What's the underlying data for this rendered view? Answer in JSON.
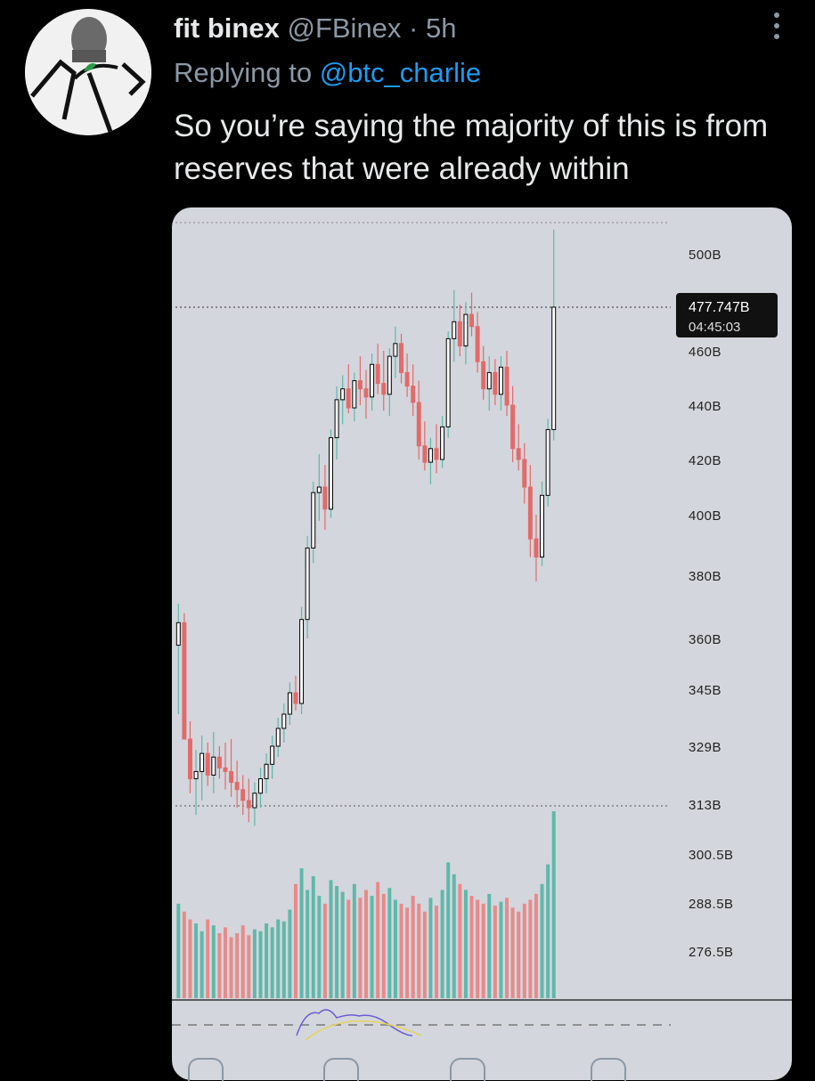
{
  "tweet": {
    "author_name": "fit binex",
    "handle": "@FBinex",
    "time_sep": " · ",
    "time": "5h",
    "replying_prefix": "Replying to ",
    "replying_to": "@btc_charlie",
    "text": "So you’re saying the majority of this is from reserves that were already within"
  },
  "icons": {
    "more": "more-vertical-icon",
    "avatar": "profile-avatar"
  },
  "chart_data": {
    "type": "candlestick",
    "y_tick_labels": [
      "500B",
      "460B",
      "440B",
      "420B",
      "400B",
      "380B",
      "360B",
      "345B",
      "329B",
      "313B",
      "300.5B",
      "288.5B",
      "276.5B"
    ],
    "price_tag": {
      "value": "477.747B",
      "countdown": "04:45:03"
    },
    "colors": {
      "up": "#000000",
      "down": "#e36a6a",
      "volume_up": "#5fb8aa",
      "volume_down": "#e88a8a",
      "background": "#d3d6dc"
    },
    "candles": [
      [
        358,
        371,
        338,
        365
      ],
      [
        365,
        368,
        333,
        331
      ],
      [
        331,
        336,
        316,
        320
      ],
      [
        320,
        328,
        310,
        322
      ],
      [
        322,
        332,
        314,
        327
      ],
      [
        327,
        330,
        318,
        321
      ],
      [
        321,
        333,
        316,
        326
      ],
      [
        326,
        329,
        320,
        323
      ],
      [
        323,
        330,
        317,
        322
      ],
      [
        322,
        331,
        315,
        319
      ],
      [
        319,
        325,
        312,
        317
      ],
      [
        317,
        321,
        310,
        314
      ],
      [
        314,
        320,
        308,
        312
      ],
      [
        312,
        319,
        307,
        316
      ],
      [
        316,
        323,
        312,
        320
      ],
      [
        320,
        327,
        316,
        324
      ],
      [
        324,
        332,
        320,
        329
      ],
      [
        329,
        337,
        326,
        334
      ],
      [
        334,
        341,
        330,
        338
      ],
      [
        338,
        347,
        335,
        344
      ],
      [
        344,
        349,
        339,
        341
      ],
      [
        341,
        370,
        338,
        366
      ],
      [
        366,
        393,
        360,
        389
      ],
      [
        389,
        412,
        384,
        408
      ],
      [
        408,
        422,
        398,
        410
      ],
      [
        410,
        418,
        395,
        402
      ],
      [
        402,
        431,
        399,
        428
      ],
      [
        428,
        447,
        420,
        442
      ],
      [
        442,
        451,
        433,
        446
      ],
      [
        446,
        455,
        437,
        439
      ],
      [
        439,
        452,
        434,
        449
      ],
      [
        449,
        458,
        440,
        446
      ],
      [
        446,
        453,
        435,
        443
      ],
      [
        443,
        459,
        438,
        455
      ],
      [
        455,
        463,
        444,
        448
      ],
      [
        448,
        460,
        438,
        444
      ],
      [
        444,
        461,
        436,
        458
      ],
      [
        458,
        470,
        450,
        463
      ],
      [
        463,
        467,
        448,
        452
      ],
      [
        452,
        459,
        443,
        447
      ],
      [
        447,
        455,
        436,
        441
      ],
      [
        441,
        449,
        420,
        425
      ],
      [
        425,
        434,
        416,
        419
      ],
      [
        419,
        428,
        411,
        424
      ],
      [
        424,
        433,
        415,
        420
      ],
      [
        420,
        436,
        417,
        432
      ],
      [
        432,
        468,
        428,
        465
      ],
      [
        465,
        485,
        456,
        472
      ],
      [
        472,
        479,
        458,
        462
      ],
      [
        462,
        480,
        455,
        475
      ],
      [
        475,
        484,
        466,
        470
      ],
      [
        470,
        476,
        452,
        456
      ],
      [
        456,
        462,
        442,
        446
      ],
      [
        446,
        458,
        438,
        452
      ],
      [
        452,
        457,
        440,
        444
      ],
      [
        444,
        458,
        438,
        454
      ],
      [
        454,
        460,
        436,
        440
      ],
      [
        440,
        447,
        419,
        424
      ],
      [
        424,
        433,
        416,
        420
      ],
      [
        420,
        426,
        404,
        410
      ],
      [
        410,
        418,
        386,
        392
      ],
      [
        392,
        400,
        378,
        386
      ],
      [
        386,
        412,
        383,
        407
      ],
      [
        407,
        435,
        403,
        431
      ],
      [
        431,
        510,
        427,
        478
      ]
    ],
    "volume": [
      48,
      44,
      40,
      38,
      34,
      40,
      37,
      33,
      36,
      31,
      33,
      37,
      32,
      35,
      34,
      38,
      36,
      40,
      39,
      45,
      58,
      66,
      55,
      62,
      52,
      48,
      60,
      57,
      54,
      50,
      58,
      51,
      55,
      52,
      59,
      53,
      56,
      50,
      48,
      46,
      52,
      48,
      44,
      51,
      47,
      55,
      69,
      63,
      58,
      55,
      52,
      50,
      48,
      53,
      47,
      49,
      51,
      46,
      44,
      48,
      50,
      53,
      58,
      68,
      95
    ]
  }
}
